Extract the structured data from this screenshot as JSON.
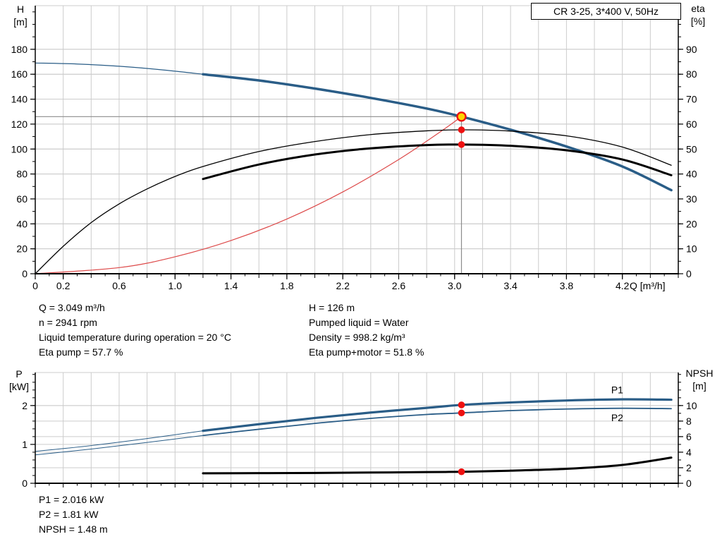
{
  "colors": {
    "blue": "#2a5d87",
    "black": "#000000",
    "red": "#dd4a4a",
    "dot_red": "#ee1111",
    "marker_yellow": "#ffd400",
    "grid": "#cccccc",
    "axis": "#000000",
    "crosshair": "#8c8c8c"
  },
  "info_panel": {
    "left": [
      "Q = 3.049 m³/h",
      "n = 2941 rpm",
      "Liquid temperature during operation = 20 °C",
      "Eta pump = 57.7 %"
    ],
    "right": [
      "H = 126 m",
      "Pumped liquid = Water",
      "Density = 998.2 kg/m³",
      "Eta pump+motor = 51.8 %"
    ]
  },
  "results_panel": {
    "lines": [
      "P1 = 2.016 kW",
      "P2 = 1.81 kW",
      "NPSH = 1.48 m"
    ]
  },
  "chart_data": [
    {
      "type": "line",
      "name": "hq-eta",
      "title": "CR 3-25, 3*400 V, 50Hz",
      "x_axis": {
        "label": "Q [m³/h]",
        "min": 0,
        "max": 4.6,
        "grid_step": 0.2,
        "minor_step": 0.1,
        "labeled_ticks": [
          [
            0,
            "0"
          ],
          [
            0.2,
            "0.2"
          ],
          [
            0.6,
            "0.6"
          ],
          [
            1,
            "1.0"
          ],
          [
            1.4,
            "1.4"
          ],
          [
            1.8,
            "1.8"
          ],
          [
            2.2,
            "2.2"
          ],
          [
            2.6,
            "2.6"
          ],
          [
            3,
            "3.0"
          ],
          [
            3.4,
            "3.4"
          ],
          [
            3.8,
            "3.8"
          ],
          [
            4.2,
            "4.2"
          ]
        ]
      },
      "y_left": {
        "name": "H",
        "unit": "[m]",
        "min": 0,
        "max": 215,
        "labeled_step": 20,
        "labeled_max": 180,
        "minor_step": 10
      },
      "y_right": {
        "name": "eta",
        "unit": "[%]",
        "min": 0,
        "max": 107.5,
        "labeled_step": 10,
        "labeled_max": 90,
        "minor_step": 5
      },
      "series": [
        {
          "id": "system-curve",
          "axis": "left",
          "color": "red",
          "width": 1.2,
          "points": [
            [
              0,
              0
            ],
            [
              0.6,
              4.9
            ],
            [
              1.0,
              13.6
            ],
            [
              1.4,
              26.6
            ],
            [
              1.8,
              43.9
            ],
            [
              2.2,
              65.6
            ],
            [
              2.6,
              91.6
            ],
            [
              2.9,
              114
            ],
            [
              3.049,
              126
            ]
          ]
        },
        {
          "id": "pump-curve-extension",
          "axis": "left",
          "color": "blue",
          "width": 1.2,
          "points": [
            [
              0,
              169
            ],
            [
              0.3,
              168.2
            ],
            [
              0.6,
              166.4
            ],
            [
              0.9,
              163.6
            ],
            [
              1.2,
              160
            ]
          ]
        },
        {
          "id": "pump-curve",
          "axis": "left",
          "color": "blue",
          "width": 3.5,
          "points": [
            [
              1.2,
              160
            ],
            [
              1.6,
              155
            ],
            [
              2.0,
              148.5
            ],
            [
              2.4,
              141
            ],
            [
              2.8,
              132.5
            ],
            [
              3.049,
              126
            ],
            [
              3.4,
              115.5
            ],
            [
              3.8,
              102
            ],
            [
              4.2,
              86
            ],
            [
              4.55,
              67
            ]
          ]
        },
        {
          "id": "eta-pump-curve",
          "axis": "right",
          "color": "black",
          "width": 1.3,
          "points": [
            [
              0,
              0
            ],
            [
              0.2,
              11
            ],
            [
              0.4,
              20.5
            ],
            [
              0.6,
              28
            ],
            [
              0.8,
              34
            ],
            [
              1.0,
              39
            ],
            [
              1.2,
              43
            ],
            [
              1.6,
              49
            ],
            [
              2.0,
              53
            ],
            [
              2.4,
              55.8
            ],
            [
              2.8,
              57.3
            ],
            [
              3.049,
              57.7
            ],
            [
              3.4,
              57.2
            ],
            [
              3.8,
              55.3
            ],
            [
              4.2,
              50.8
            ],
            [
              4.55,
              43.5
            ]
          ]
        },
        {
          "id": "eta-pump-motor-curve",
          "axis": "right",
          "color": "black",
          "width": 3,
          "points": [
            [
              1.2,
              38
            ],
            [
              1.6,
              43.8
            ],
            [
              2.0,
              47.8
            ],
            [
              2.4,
              50.3
            ],
            [
              2.8,
              51.6
            ],
            [
              3.049,
              51.8
            ],
            [
              3.4,
              51.3
            ],
            [
              3.8,
              49.5
            ],
            [
              4.2,
              45.8
            ],
            [
              4.55,
              39.5
            ]
          ]
        }
      ],
      "crosshair": {
        "q": 3.049,
        "v": 126
      },
      "markers": [
        {
          "id": "duty-point",
          "axis": "left",
          "q": 3.049,
          "v": 126,
          "style": "duty"
        },
        {
          "id": "eta-pump-point",
          "axis": "right",
          "q": 3.049,
          "v": 57.7,
          "style": "dot"
        },
        {
          "id": "eta-pump-motor-point",
          "axis": "right",
          "q": 3.049,
          "v": 51.8,
          "style": "dot"
        }
      ]
    },
    {
      "type": "line",
      "name": "power-npsh",
      "x_axis": {
        "min": 0,
        "max": 4.6,
        "grid_step": 0.2,
        "minor_step": 0.1
      },
      "y_left": {
        "name": "P",
        "unit": "[kW]",
        "min": 0,
        "max": 2.85,
        "labeled_step": 1,
        "labeled_max": 2,
        "minor_step": 0.2
      },
      "y_right": {
        "name": "NPSH",
        "unit": "[m]",
        "min": 0,
        "max": 14.25,
        "labeled_step": 2,
        "labeled_max": 10,
        "minor_step": 1
      },
      "series": [
        {
          "id": "p1-curve-extension",
          "axis": "left",
          "color": "blue",
          "width": 1,
          "points": [
            [
              0,
              0.82
            ],
            [
              0.4,
              0.97
            ],
            [
              0.8,
              1.15
            ],
            [
              1.2,
              1.35
            ]
          ]
        },
        {
          "id": "p1-curve",
          "axis": "left",
          "color": "blue",
          "width": 3.2,
          "label": "P1",
          "label_at": [
            4.12,
            2.31
          ],
          "points": [
            [
              1.2,
              1.35
            ],
            [
              1.6,
              1.52
            ],
            [
              2.0,
              1.68
            ],
            [
              2.4,
              1.82
            ],
            [
              2.8,
              1.94
            ],
            [
              3.049,
              2.016
            ],
            [
              3.4,
              2.08
            ],
            [
              3.8,
              2.13
            ],
            [
              4.2,
              2.16
            ],
            [
              4.55,
              2.15
            ]
          ]
        },
        {
          "id": "p2-curve-extension",
          "axis": "left",
          "color": "blue",
          "width": 1,
          "points": [
            [
              0,
              0.73
            ],
            [
              0.4,
              0.88
            ],
            [
              0.8,
              1.05
            ],
            [
              1.2,
              1.23
            ]
          ]
        },
        {
          "id": "p2-curve",
          "axis": "left",
          "color": "blue",
          "width": 1.8,
          "label": "P2",
          "label_at": [
            4.12,
            1.6
          ],
          "points": [
            [
              1.2,
              1.23
            ],
            [
              1.6,
              1.39
            ],
            [
              2.0,
              1.54
            ],
            [
              2.4,
              1.67
            ],
            [
              2.8,
              1.77
            ],
            [
              3.049,
              1.81
            ],
            [
              3.4,
              1.87
            ],
            [
              3.8,
              1.91
            ],
            [
              4.2,
              1.93
            ],
            [
              4.55,
              1.92
            ]
          ]
        },
        {
          "id": "npsh-curve",
          "axis": "right",
          "color": "black",
          "width": 3,
          "points": [
            [
              1.2,
              1.28
            ],
            [
              1.6,
              1.3
            ],
            [
              2.0,
              1.33
            ],
            [
              2.4,
              1.38
            ],
            [
              2.8,
              1.44
            ],
            [
              3.049,
              1.48
            ],
            [
              3.4,
              1.62
            ],
            [
              3.8,
              1.86
            ],
            [
              4.2,
              2.36
            ],
            [
              4.55,
              3.3
            ]
          ]
        }
      ],
      "markers": [
        {
          "id": "p1-point",
          "axis": "left",
          "q": 3.049,
          "v": 2.016,
          "style": "dot"
        },
        {
          "id": "p2-point",
          "axis": "left",
          "q": 3.049,
          "v": 1.81,
          "style": "dot"
        },
        {
          "id": "npsh-point",
          "axis": "right",
          "q": 3.049,
          "v": 1.48,
          "style": "dot"
        }
      ]
    }
  ]
}
